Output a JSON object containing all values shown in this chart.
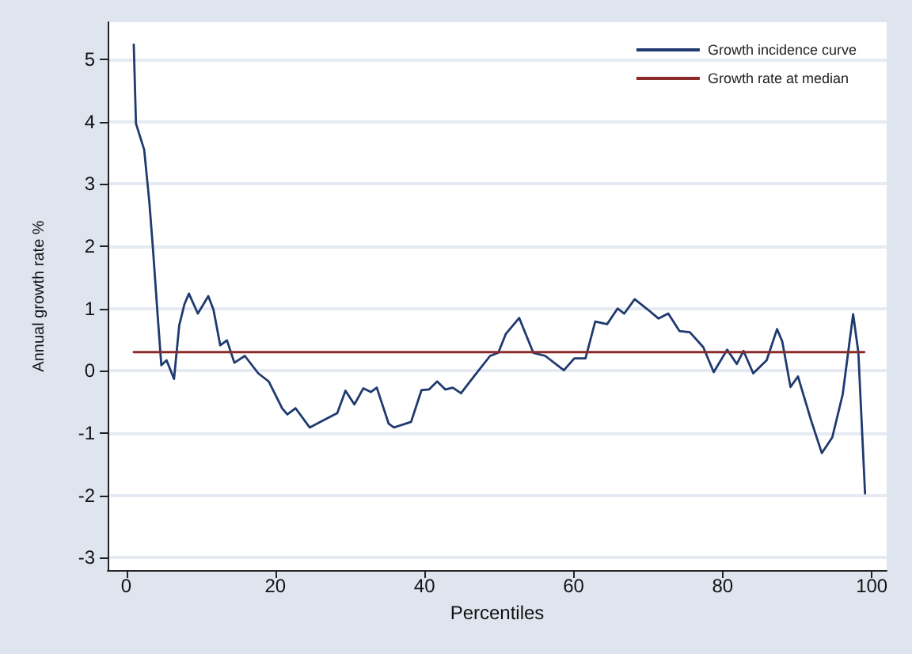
{
  "chart_data": {
    "type": "line",
    "xlabel": "Percentiles",
    "ylabel": "Annual growth rate %",
    "xlim": [
      -2.5,
      102
    ],
    "ylim": [
      -3.2,
      5.6
    ],
    "xticks": [
      0,
      20,
      40,
      60,
      80,
      100
    ],
    "yticks": [
      -3,
      -2,
      -1,
      0,
      1,
      2,
      3,
      4,
      5
    ],
    "grid": "y",
    "legend": "top right",
    "marker": "none",
    "line_style": "solid",
    "series": [
      {
        "name": "Growth incidence curve",
        "color": "#1f3a6e",
        "x": [
          1,
          1.3,
          2.4,
          3.1,
          3.6,
          4.2,
          4.7,
          5.4,
          6.4,
          7.1,
          7.8,
          8.4,
          9.6,
          11,
          11.7,
          12.6,
          13.5,
          14.5,
          15.9,
          17.7,
          19.1,
          20.9,
          21.6,
          22.7,
          24.6,
          26.2,
          28.3,
          29.4,
          30.6,
          31.8,
          32.8,
          33.6,
          35.2,
          35.9,
          38.2,
          39.6,
          40.6,
          41.7,
          42.8,
          43.8,
          44.9,
          46.7,
          48.8,
          49.9,
          50.9,
          52.7,
          54.6,
          56.2,
          58.7,
          60.1,
          61.6,
          62.9,
          64.5,
          65.9,
          66.8,
          68.2,
          70,
          71.4,
          72.7,
          74.2,
          75.6,
          77.4,
          78.8,
          80.6,
          81.9,
          82.8,
          84.1,
          85.9,
          87.3,
          88,
          89.1,
          90.1,
          91.9,
          93.3,
          94.7,
          96.1,
          97.5,
          98.2,
          99.1
        ],
        "values": [
          5.24,
          3.97,
          3.55,
          2.7,
          1.92,
          0.9,
          0.09,
          0.17,
          -0.13,
          0.73,
          1.07,
          1.24,
          0.92,
          1.2,
          0.98,
          0.41,
          0.49,
          0.13,
          0.24,
          -0.04,
          -0.17,
          -0.6,
          -0.7,
          -0.6,
          -0.91,
          -0.81,
          -0.68,
          -0.32,
          -0.54,
          -0.28,
          -0.34,
          -0.27,
          -0.85,
          -0.91,
          -0.82,
          -0.31,
          -0.3,
          -0.17,
          -0.3,
          -0.27,
          -0.36,
          -0.08,
          0.24,
          0.29,
          0.59,
          0.85,
          0.29,
          0.24,
          0.01,
          0.2,
          0.2,
          0.79,
          0.75,
          1.0,
          0.92,
          1.15,
          0.98,
          0.84,
          0.92,
          0.64,
          0.62,
          0.38,
          -0.02,
          0.34,
          0.11,
          0.32,
          -0.04,
          0.17,
          0.67,
          0.47,
          -0.26,
          -0.09,
          -0.81,
          -1.32,
          -1.07,
          -0.38,
          0.91,
          0.3,
          -1.97
        ]
      },
      {
        "name": "Growth rate at median",
        "color": "#8b2a2a",
        "x": [
          1,
          99
        ],
        "values": [
          0.3,
          0.3
        ]
      }
    ]
  }
}
